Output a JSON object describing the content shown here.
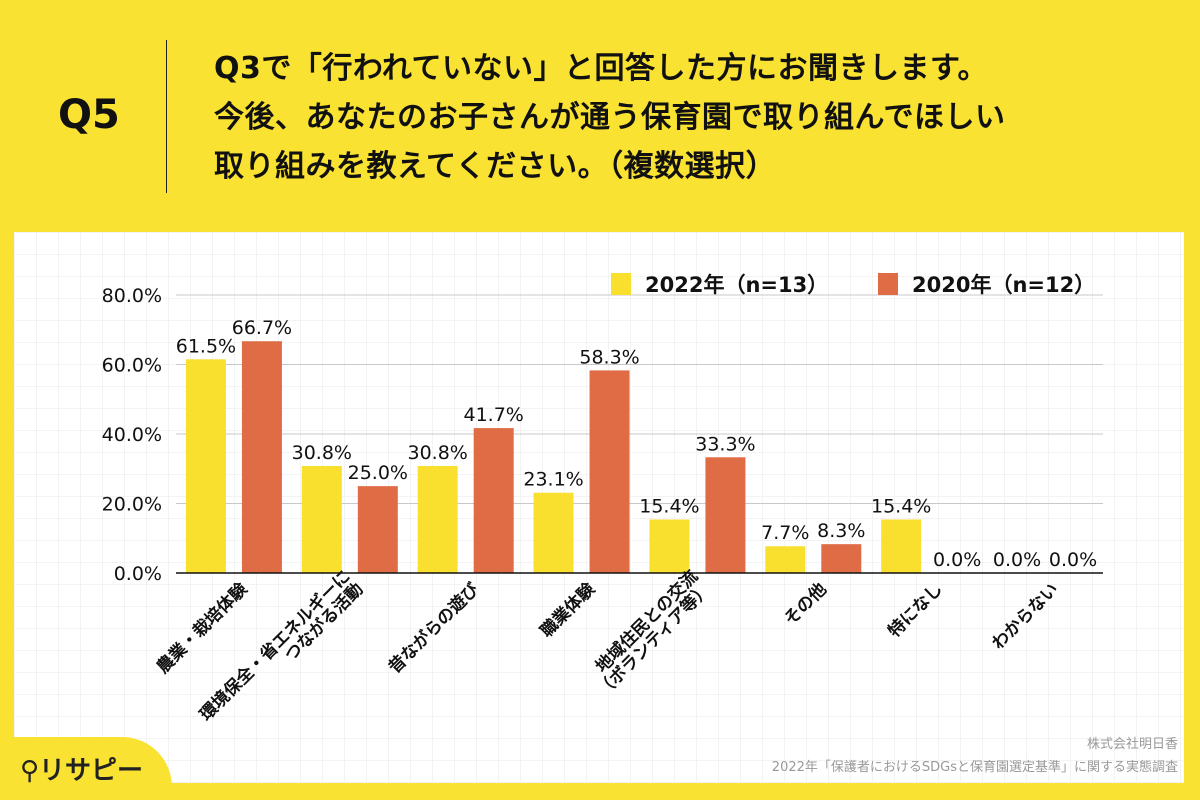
{
  "header": {
    "question_no": "Q5",
    "title_lines": [
      "Q3で「行われていない」と回答した方にお聞きします。",
      "今後、あなたのお子さんが通う保育園で取り組んでほしい",
      "取り組みを教えてください。（複数選択）"
    ]
  },
  "chart_data": {
    "type": "bar",
    "categories": [
      "農業・栽培体験",
      "環境保全・省エネルギーに\nつながる活動",
      "昔ながらの遊び",
      "職業体験",
      "地域住民との交流\n（ボランティア等）",
      "その他",
      "特になし",
      "わからない"
    ],
    "series": [
      {
        "name": "2022年（n=13）",
        "color": "#F9E02E",
        "values": [
          61.5,
          30.8,
          30.8,
          23.1,
          15.4,
          7.7,
          15.4,
          0.0
        ]
      },
      {
        "name": "2020年（n=12）",
        "color": "#E06C46",
        "values": [
          66.7,
          25.0,
          41.7,
          58.3,
          33.3,
          8.3,
          0.0,
          0.0
        ]
      }
    ],
    "yticks": [
      "0.0%",
      "20.0%",
      "40.0%",
      "60.0%",
      "80.0%"
    ],
    "ylim": [
      0,
      80
    ],
    "grid": true,
    "legend": "top-right",
    "data_labels": true
  },
  "footer": {
    "company": "株式会社明日香",
    "survey": "2022年「保護者におけるSDGsと保育園選定基準」に関する実態調査",
    "logo": "リサピー"
  }
}
